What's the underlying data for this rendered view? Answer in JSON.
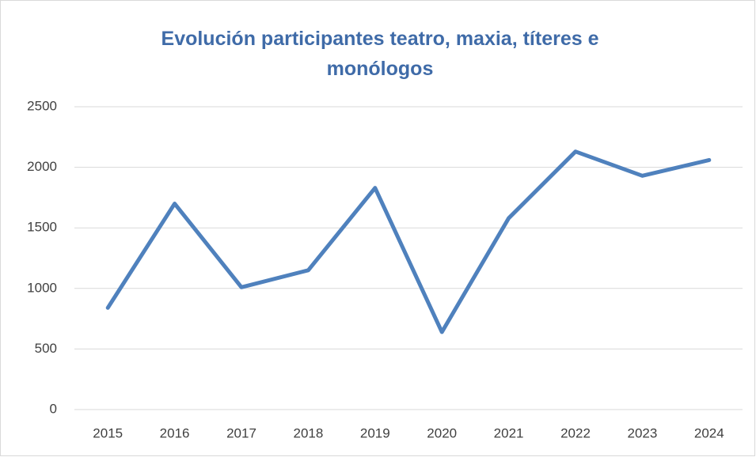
{
  "chart_data": {
    "type": "line",
    "title": "Evolución participantes teatro, maxia, títeres e monólogos",
    "categories": [
      "2015",
      "2016",
      "2017",
      "2018",
      "2019",
      "2020",
      "2021",
      "2022",
      "2023",
      "2024"
    ],
    "values": [
      840,
      1700,
      1010,
      1150,
      1830,
      640,
      1580,
      2130,
      1930,
      2060
    ],
    "color": "#4f81bd",
    "ylim": [
      0,
      2500
    ],
    "yticks": [
      0,
      500,
      1000,
      1500,
      2000,
      2500
    ],
    "grid": true
  }
}
